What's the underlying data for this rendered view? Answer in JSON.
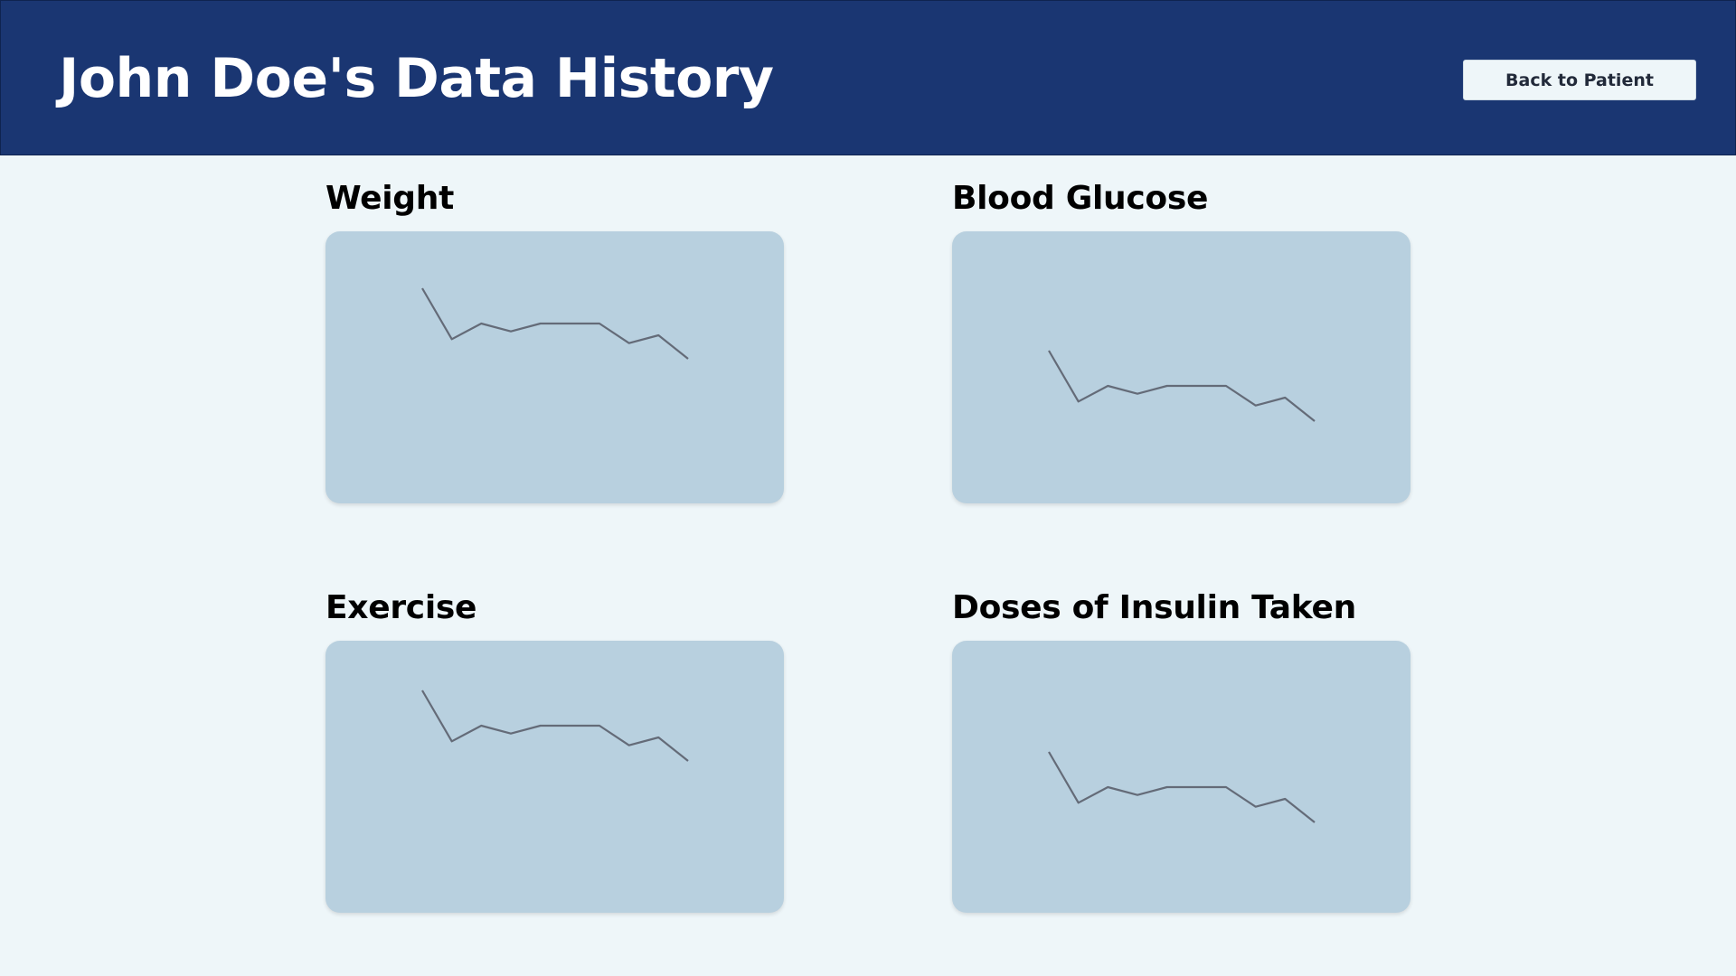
{
  "header": {
    "title": "John Doe's Data History",
    "back_button_label": "Back to Patient"
  },
  "colors": {
    "header_bg": "#1a3672",
    "page_bg": "#eef6f9",
    "card_bg": "#b8d0df",
    "line": "#646b78"
  },
  "panels": [
    {
      "title": "Weight"
    },
    {
      "title": "Blood Glucose"
    },
    {
      "title": "Exercise"
    },
    {
      "title": "Doses of Insulin Taken"
    }
  ],
  "chart_data": [
    {
      "type": "line",
      "series": [
        {
          "values": [
            87,
            74,
            78,
            76,
            78,
            78,
            78,
            73,
            75,
            69
          ]
        }
      ]
    },
    {
      "type": "line",
      "series": [
        {
          "values": [
            87,
            74,
            78,
            76,
            78,
            78,
            78,
            73,
            75,
            69
          ]
        }
      ]
    },
    {
      "type": "line",
      "series": [
        {
          "values": [
            87,
            74,
            78,
            76,
            78,
            78,
            78,
            73,
            75,
            69
          ]
        }
      ]
    },
    {
      "type": "line",
      "series": [
        {
          "values": [
            87,
            74,
            78,
            76,
            78,
            78,
            78,
            73,
            75,
            69
          ]
        }
      ]
    }
  ]
}
